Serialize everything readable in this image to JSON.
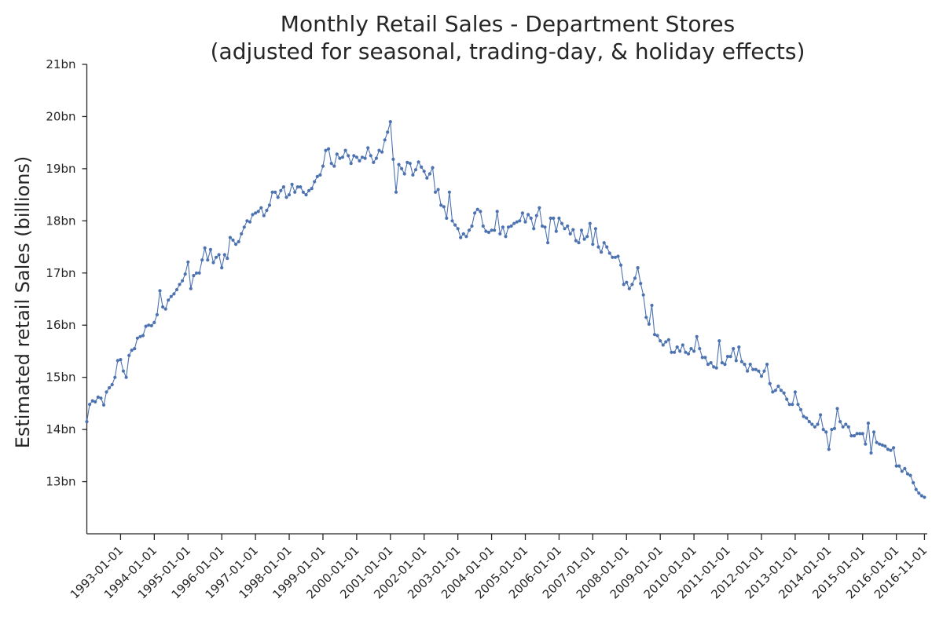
{
  "chart_data": {
    "type": "line",
    "title": [
      "Monthly Retail Sales - Department Stores",
      "(adjusted for seasonal, trading-day, & holiday effects)"
    ],
    "ylabel": "Estimated retail Sales (billions)",
    "xlabel": "",
    "ylim": [
      12,
      21
    ],
    "yticks": [
      13,
      14,
      15,
      16,
      17,
      18,
      19,
      20,
      21
    ],
    "ytick_labels": [
      "13bn",
      "14bn",
      "15bn",
      "16bn",
      "17bn",
      "18bn",
      "19bn",
      "20bn",
      "21bn"
    ],
    "xlim": [
      "1992-01-01",
      "2016-12-01"
    ],
    "xtick_labels": [
      "1993-01-01",
      "1994-01-01",
      "1995-01-01",
      "1996-01-01",
      "1997-01-01",
      "1998-01-01",
      "1999-01-01",
      "2000-01-01",
      "2001-01-01",
      "2002-01-01",
      "2003-01-01",
      "2004-01-01",
      "2005-01-01",
      "2006-01-01",
      "2007-01-01",
      "2008-01-01",
      "2009-01-01",
      "2010-01-01",
      "2011-01-01",
      "2012-01-01",
      "2013-01-01",
      "2014-01-01",
      "2015-01-01",
      "2016-01-01",
      "2016-11-01"
    ],
    "grid": false,
    "legend": "none",
    "color": "#4c72b0",
    "series": [
      {
        "x_start": "1992-01",
        "frequency": "monthly",
        "values": [
          14.15,
          14.48,
          14.55,
          14.53,
          14.62,
          14.6,
          14.47,
          14.72,
          14.8,
          14.86,
          15.0,
          15.32,
          15.34,
          15.12,
          15.0,
          15.42,
          15.52,
          15.55,
          15.75,
          15.78,
          15.8,
          15.98,
          16.0,
          15.99,
          16.05,
          16.2,
          16.66,
          16.35,
          16.31,
          16.48,
          16.55,
          16.6,
          16.68,
          16.78,
          16.85,
          16.98,
          17.21,
          16.7,
          16.95,
          17.0,
          17.0,
          17.25,
          17.48,
          17.25,
          17.45,
          17.2,
          17.3,
          17.35,
          17.1,
          17.35,
          17.28,
          17.68,
          17.63,
          17.55,
          17.6,
          17.75,
          17.88,
          18.0,
          17.98,
          18.12,
          18.15,
          18.18,
          18.25,
          18.1,
          18.2,
          18.3,
          18.55,
          18.55,
          18.45,
          18.58,
          18.65,
          18.45,
          18.5,
          18.7,
          18.55,
          18.65,
          18.65,
          18.55,
          18.5,
          18.58,
          18.62,
          18.75,
          18.85,
          18.88,
          19.05,
          19.35,
          19.38,
          19.1,
          19.05,
          19.28,
          19.2,
          19.22,
          19.35,
          19.25,
          19.1,
          19.25,
          19.22,
          19.15,
          19.22,
          19.2,
          19.4,
          19.25,
          19.12,
          19.2,
          19.35,
          19.32,
          19.55,
          19.7,
          19.9,
          19.18,
          18.55,
          19.08,
          19.0,
          18.9,
          19.12,
          19.1,
          18.88,
          18.98,
          19.13,
          19.03,
          18.95,
          18.82,
          18.9,
          19.02,
          18.55,
          18.6,
          18.3,
          18.27,
          18.05,
          18.55,
          18.0,
          17.92,
          17.85,
          17.68,
          17.75,
          17.7,
          17.82,
          17.9,
          18.15,
          18.22,
          18.18,
          17.9,
          17.8,
          17.78,
          17.82,
          17.82,
          18.18,
          17.75,
          17.88,
          17.7,
          17.88,
          17.9,
          17.95,
          17.98,
          18.0,
          18.15,
          17.98,
          18.12,
          18.05,
          17.85,
          18.1,
          18.25,
          17.9,
          17.88,
          17.58,
          18.05,
          18.05,
          17.8,
          18.05,
          17.95,
          17.85,
          17.9,
          17.75,
          17.83,
          17.62,
          17.58,
          17.82,
          17.65,
          17.7,
          17.95,
          17.55,
          17.85,
          17.5,
          17.4,
          17.58,
          17.5,
          17.38,
          17.3,
          17.3,
          17.32,
          17.15,
          16.78,
          16.82,
          16.7,
          16.78,
          16.9,
          17.1,
          16.8,
          16.58,
          16.15,
          16.02,
          16.38,
          15.82,
          15.8,
          15.7,
          15.62,
          15.68,
          15.72,
          15.48,
          15.48,
          15.58,
          15.5,
          15.62,
          15.48,
          15.45,
          15.55,
          15.5,
          15.78,
          15.55,
          15.38,
          15.38,
          15.25,
          15.28,
          15.2,
          15.18,
          15.7,
          15.28,
          15.25,
          15.4,
          15.4,
          15.55,
          15.32,
          15.58,
          15.3,
          15.25,
          15.12,
          15.25,
          15.15,
          15.15,
          15.12,
          15.02,
          15.12,
          15.25,
          14.88,
          14.72,
          14.75,
          14.83,
          14.75,
          14.7,
          14.58,
          14.48,
          14.48,
          14.72,
          14.48,
          14.38,
          14.25,
          14.22,
          14.15,
          14.1,
          14.05,
          14.1,
          14.28,
          14.0,
          13.95,
          13.62,
          14.0,
          14.02,
          14.4,
          14.15,
          14.05,
          14.1,
          14.05,
          13.88,
          13.88,
          13.92,
          13.92,
          13.92,
          13.72,
          14.12,
          13.55,
          13.95,
          13.75,
          13.72,
          13.7,
          13.68,
          13.62,
          13.6,
          13.65,
          13.3,
          13.3,
          13.2,
          13.25,
          13.15,
          13.12,
          12.98,
          12.85,
          12.78,
          12.73,
          12.7
        ]
      }
    ]
  }
}
